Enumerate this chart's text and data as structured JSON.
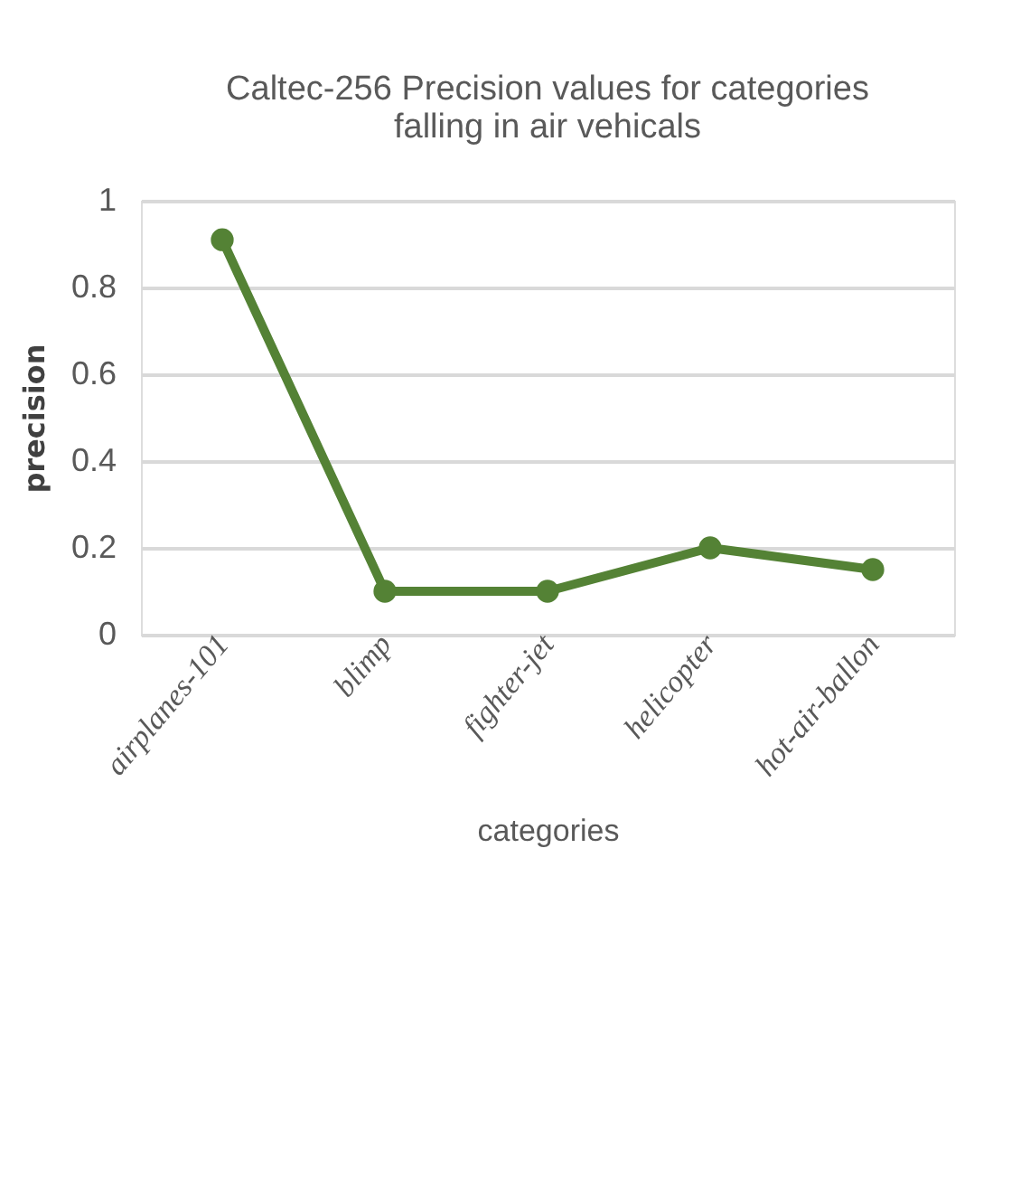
{
  "chart_data": {
    "type": "line",
    "title": [
      "Caltec-256 Precision values for categories",
      "falling in air vehicals"
    ],
    "xlabel": "categories",
    "ylabel": "precision",
    "categories": [
      "airplanes-101",
      "blimp",
      "fighter-jet",
      "helicopter",
      "hot-air-ballon"
    ],
    "series": [
      {
        "color": "#548235",
        "values": [
          0.91,
          0.1,
          0.1,
          0.2,
          0.15
        ]
      }
    ],
    "ylim": [
      0,
      1
    ],
    "yticks": [
      0,
      0.2,
      0.4,
      0.6,
      0.8,
      1
    ],
    "grid": "y",
    "marker": "circle",
    "line_style": "solid"
  }
}
